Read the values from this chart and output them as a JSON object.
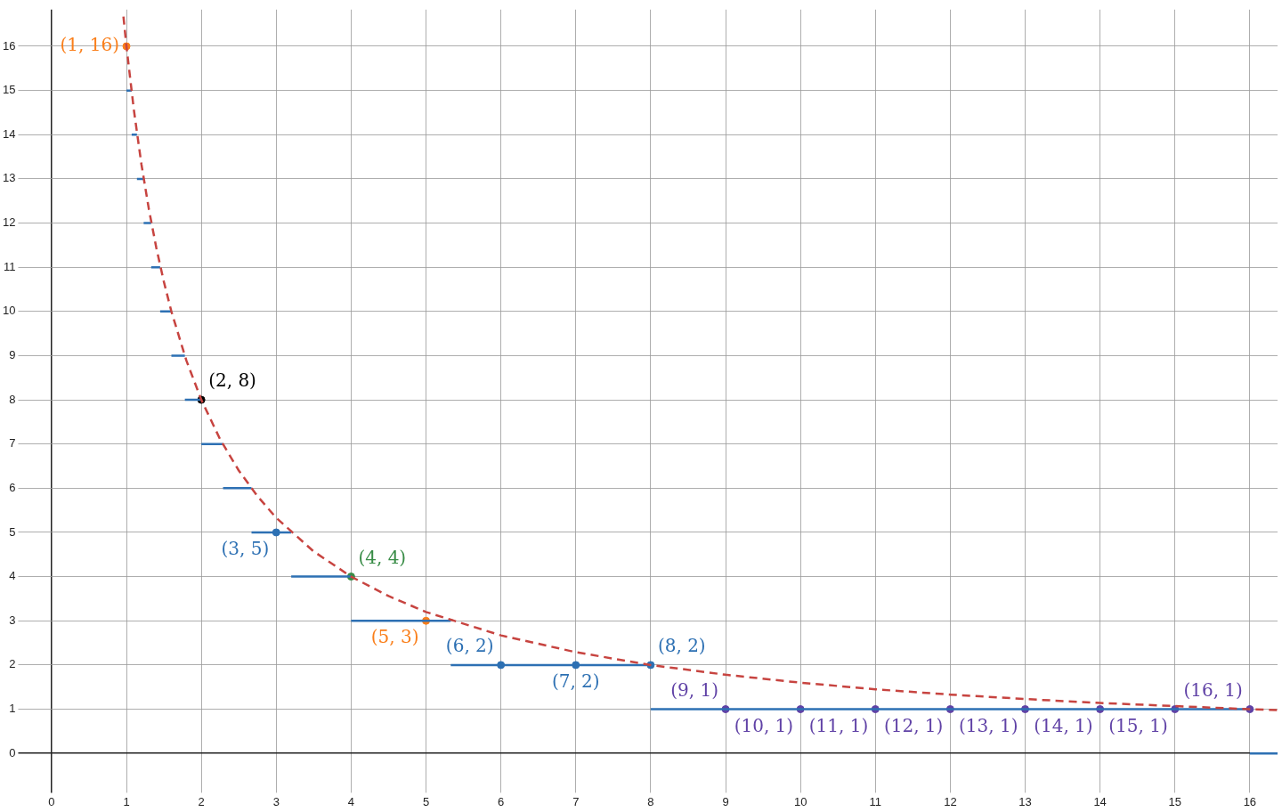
{
  "chart_data": {
    "type": "line",
    "xlim": [
      -0.35,
      16.37
    ],
    "ylim": [
      -0.73,
      16.83
    ],
    "xticks": [
      0,
      1,
      2,
      3,
      4,
      5,
      6,
      7,
      8,
      9,
      10,
      11,
      12,
      13,
      14,
      15,
      16
    ],
    "yticks": [
      0,
      1,
      2,
      3,
      4,
      5,
      6,
      7,
      8,
      9,
      10,
      11,
      12,
      13,
      14,
      15,
      16
    ],
    "grid": true,
    "legend": false,
    "series": [
      {
        "color": "#c74440",
        "line_style": "dashed",
        "marker": "none",
        "x": [
          0.96,
          1,
          1.1,
          1.2,
          1.3,
          1.4,
          1.5,
          1.6,
          1.8,
          2,
          2.25,
          2.5,
          2.75,
          3,
          3.5,
          4,
          4.5,
          5,
          6,
          7,
          8,
          9,
          10,
          11,
          12,
          13,
          14,
          15,
          16,
          16.37
        ],
        "values": [
          16.67,
          16,
          14.55,
          13.33,
          12.31,
          11.43,
          10.67,
          10,
          8.89,
          8,
          7.11,
          6.4,
          5.82,
          5.33,
          4.57,
          4,
          3.56,
          3.2,
          2.67,
          2.29,
          2,
          1.78,
          1.6,
          1.45,
          1.33,
          1.23,
          1.14,
          1.07,
          1,
          0.98
        ]
      },
      {
        "color": "#2d70b3",
        "line_style": "solid",
        "marker": "none",
        "x": [
          1,
          1.07
        ],
        "values": [
          15,
          15
        ]
      },
      {
        "color": "#2d70b3",
        "line_style": "solid",
        "marker": "none",
        "x": [
          1.07,
          1.14
        ],
        "values": [
          14,
          14
        ]
      },
      {
        "color": "#2d70b3",
        "line_style": "solid",
        "marker": "none",
        "x": [
          1.14,
          1.23
        ],
        "values": [
          13,
          13
        ]
      },
      {
        "color": "#2d70b3",
        "line_style": "solid",
        "marker": "none",
        "x": [
          1.23,
          1.33
        ],
        "values": [
          12,
          12
        ]
      },
      {
        "color": "#2d70b3",
        "line_style": "solid",
        "marker": "none",
        "x": [
          1.33,
          1.45
        ],
        "values": [
          11,
          11
        ]
      },
      {
        "color": "#2d70b3",
        "line_style": "solid",
        "marker": "none",
        "x": [
          1.45,
          1.6
        ],
        "values": [
          10,
          10
        ]
      },
      {
        "color": "#2d70b3",
        "line_style": "solid",
        "marker": "none",
        "x": [
          1.6,
          1.78
        ],
        "values": [
          9,
          9
        ]
      },
      {
        "color": "#2d70b3",
        "line_style": "solid",
        "marker": "none",
        "x": [
          1.78,
          2
        ],
        "values": [
          8,
          8
        ]
      },
      {
        "color": "#2d70b3",
        "line_style": "solid",
        "marker": "none",
        "x": [
          2,
          2.29
        ],
        "values": [
          7,
          7
        ]
      },
      {
        "color": "#2d70b3",
        "line_style": "solid",
        "marker": "none",
        "x": [
          2.29,
          2.67
        ],
        "values": [
          6,
          6
        ]
      },
      {
        "color": "#2d70b3",
        "line_style": "solid",
        "marker": "none",
        "x": [
          2.67,
          3.2
        ],
        "values": [
          5,
          5
        ]
      },
      {
        "color": "#2d70b3",
        "line_style": "solid",
        "marker": "none",
        "x": [
          3.2,
          4
        ],
        "values": [
          4,
          4
        ]
      },
      {
        "color": "#2d70b3",
        "line_style": "solid",
        "marker": "none",
        "x": [
          4,
          5.33
        ],
        "values": [
          3,
          3
        ]
      },
      {
        "color": "#2d70b3",
        "line_style": "solid",
        "marker": "none",
        "x": [
          5.33,
          8
        ],
        "values": [
          2,
          2
        ]
      },
      {
        "color": "#2d70b3",
        "line_style": "solid",
        "marker": "none",
        "x": [
          8,
          16
        ],
        "values": [
          1,
          1
        ]
      },
      {
        "color": "#2d70b3",
        "line_style": "solid",
        "marker": "none",
        "x": [
          16,
          16.37
        ],
        "values": [
          0,
          0
        ]
      },
      {
        "type": "scatter",
        "marker": "circle",
        "x": [
          1,
          2,
          3,
          4,
          5,
          6,
          7,
          8,
          9,
          10,
          11,
          12,
          13,
          14,
          15,
          16
        ],
        "values": [
          16,
          8,
          5,
          4,
          3,
          2,
          2,
          2,
          1,
          1,
          1,
          1,
          1,
          1,
          1,
          1
        ],
        "colors": [
          "#fa7e19",
          "#000000",
          "#2d70b3",
          "#388c46",
          "#fa7e19",
          "#2d70b3",
          "#2d70b3",
          "#2d70b3",
          "#6042a6",
          "#6042a6",
          "#6042a6",
          "#6042a6",
          "#6042a6",
          "#6042a6",
          "#6042a6",
          "#6042a6"
        ],
        "value_labels": [
          "(1, 16)",
          "(2, 8)",
          "(3, 5)",
          "(4, 4)",
          "(5, 3)",
          "(6, 2)",
          "(7, 2)",
          "(8, 2)",
          "(9, 1)",
          "(10, 1)",
          "(11, 1)",
          "(12, 1)",
          "(13, 1)",
          "(14, 1)",
          "(15, 1)",
          "(16, 1)"
        ]
      }
    ]
  }
}
